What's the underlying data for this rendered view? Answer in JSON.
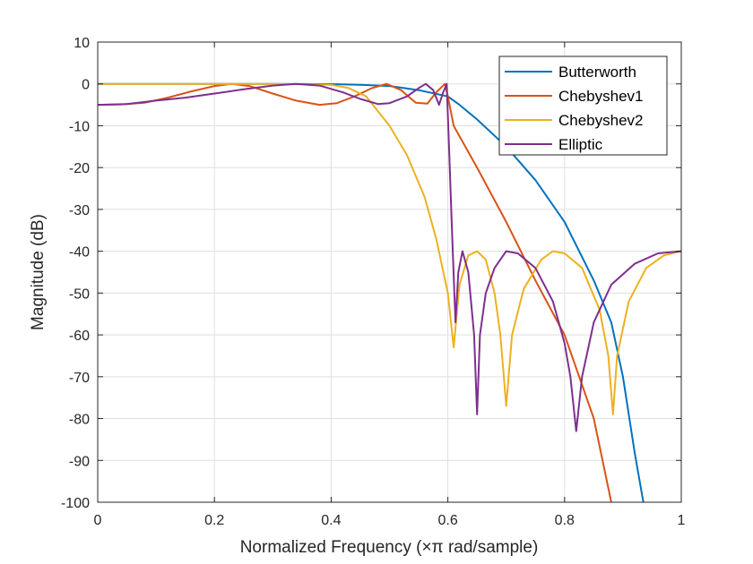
{
  "chart_data": {
    "type": "line",
    "xlabel_prefix": "Normalized Frequency (",
    "xlabel_symbol": "×π",
    "xlabel_suffix": " rad/sample)",
    "ylabel": "Magnitude (dB)",
    "xlim": [
      0,
      1
    ],
    "ylim": [
      -100,
      10
    ],
    "xticks": [
      0,
      0.2,
      0.4,
      0.6,
      0.8,
      1
    ],
    "xtick_labels": [
      "0",
      "0.2",
      "0.4",
      "0.6",
      "0.8",
      "1"
    ],
    "yticks": [
      10,
      0,
      -10,
      -20,
      -30,
      -40,
      -50,
      -60,
      -70,
      -80,
      -90,
      -100
    ],
    "ytick_labels": [
      "10",
      "0",
      "-10",
      "-20",
      "-30",
      "-40",
      "-50",
      "-60",
      "-70",
      "-80",
      "-90",
      "-100"
    ],
    "grid": true,
    "legend_position": "top-right",
    "series": [
      {
        "name": "Butterworth",
        "color": "#0072BD",
        "points": [
          [
            0,
            0
          ],
          [
            0.3,
            0
          ],
          [
            0.4,
            -0.05
          ],
          [
            0.45,
            -0.2
          ],
          [
            0.5,
            -0.5
          ],
          [
            0.52,
            -0.9
          ],
          [
            0.55,
            -1.5
          ],
          [
            0.58,
            -2.4
          ],
          [
            0.6,
            -3
          ],
          [
            0.62,
            -5
          ],
          [
            0.65,
            -8.5
          ],
          [
            0.7,
            -15
          ],
          [
            0.75,
            -23
          ],
          [
            0.8,
            -33
          ],
          [
            0.85,
            -47
          ],
          [
            0.88,
            -57
          ],
          [
            0.9,
            -70
          ],
          [
            0.92,
            -88
          ],
          [
            0.935,
            -100
          ]
        ]
      },
      {
        "name": "Chebyshev1",
        "color": "#D95319",
        "points": [
          [
            0,
            -5
          ],
          [
            0.04,
            -4.9
          ],
          [
            0.08,
            -4.5
          ],
          [
            0.12,
            -3.3
          ],
          [
            0.16,
            -1.8
          ],
          [
            0.2,
            -0.5
          ],
          [
            0.23,
            0
          ],
          [
            0.26,
            -0.5
          ],
          [
            0.3,
            -2.3
          ],
          [
            0.34,
            -4
          ],
          [
            0.38,
            -5
          ],
          [
            0.41,
            -4.6
          ],
          [
            0.44,
            -3
          ],
          [
            0.47,
            -1
          ],
          [
            0.495,
            0
          ],
          [
            0.52,
            -1.5
          ],
          [
            0.545,
            -4.5
          ],
          [
            0.565,
            -4.7
          ],
          [
            0.58,
            -2
          ],
          [
            0.595,
            0
          ],
          [
            0.6,
            -3
          ],
          [
            0.61,
            -10
          ],
          [
            0.65,
            -20
          ],
          [
            0.7,
            -33
          ],
          [
            0.75,
            -47
          ],
          [
            0.8,
            -60
          ],
          [
            0.85,
            -80
          ],
          [
            0.88,
            -100
          ]
        ]
      },
      {
        "name": "Chebyshev2",
        "color": "#EDB120",
        "points": [
          [
            0,
            0
          ],
          [
            0.3,
            0
          ],
          [
            0.4,
            -0.2
          ],
          [
            0.43,
            -1
          ],
          [
            0.46,
            -3
          ],
          [
            0.5,
            -10
          ],
          [
            0.53,
            -17
          ],
          [
            0.56,
            -27
          ],
          [
            0.58,
            -37
          ],
          [
            0.6,
            -50
          ],
          [
            0.61,
            -63
          ],
          [
            0.62,
            -48
          ],
          [
            0.635,
            -41
          ],
          [
            0.65,
            -40
          ],
          [
            0.665,
            -42
          ],
          [
            0.68,
            -50
          ],
          [
            0.69,
            -60
          ],
          [
            0.7,
            -77
          ],
          [
            0.71,
            -60
          ],
          [
            0.73,
            -49
          ],
          [
            0.76,
            -42
          ],
          [
            0.78,
            -40
          ],
          [
            0.8,
            -40.5
          ],
          [
            0.83,
            -44
          ],
          [
            0.86,
            -54
          ],
          [
            0.875,
            -65
          ],
          [
            0.883,
            -79
          ],
          [
            0.89,
            -65
          ],
          [
            0.91,
            -52
          ],
          [
            0.94,
            -44
          ],
          [
            0.97,
            -41
          ],
          [
            1,
            -40
          ]
        ]
      },
      {
        "name": "Elliptic",
        "color": "#7E2F8E",
        "points": [
          [
            0,
            -5
          ],
          [
            0.05,
            -4.8
          ],
          [
            0.1,
            -4
          ],
          [
            0.15,
            -3.3
          ],
          [
            0.2,
            -2.3
          ],
          [
            0.25,
            -1.3
          ],
          [
            0.3,
            -0.4
          ],
          [
            0.34,
            0
          ],
          [
            0.38,
            -0.4
          ],
          [
            0.42,
            -2
          ],
          [
            0.45,
            -3.6
          ],
          [
            0.48,
            -4.8
          ],
          [
            0.5,
            -4.6
          ],
          [
            0.53,
            -3
          ],
          [
            0.55,
            -1
          ],
          [
            0.562,
            0
          ],
          [
            0.575,
            -1.5
          ],
          [
            0.585,
            -5
          ],
          [
            0.592,
            -2
          ],
          [
            0.598,
            0
          ],
          [
            0.602,
            -15
          ],
          [
            0.607,
            -35
          ],
          [
            0.613,
            -57
          ],
          [
            0.618,
            -45
          ],
          [
            0.625,
            -40
          ],
          [
            0.635,
            -45
          ],
          [
            0.645,
            -60
          ],
          [
            0.65,
            -79
          ],
          [
            0.655,
            -60
          ],
          [
            0.665,
            -50
          ],
          [
            0.68,
            -44
          ],
          [
            0.7,
            -40
          ],
          [
            0.72,
            -40.5
          ],
          [
            0.75,
            -44
          ],
          [
            0.78,
            -52
          ],
          [
            0.8,
            -62
          ],
          [
            0.81,
            -70
          ],
          [
            0.82,
            -83
          ],
          [
            0.83,
            -70
          ],
          [
            0.85,
            -57
          ],
          [
            0.88,
            -48
          ],
          [
            0.92,
            -43
          ],
          [
            0.96,
            -40.5
          ],
          [
            1,
            -40
          ]
        ]
      }
    ]
  }
}
